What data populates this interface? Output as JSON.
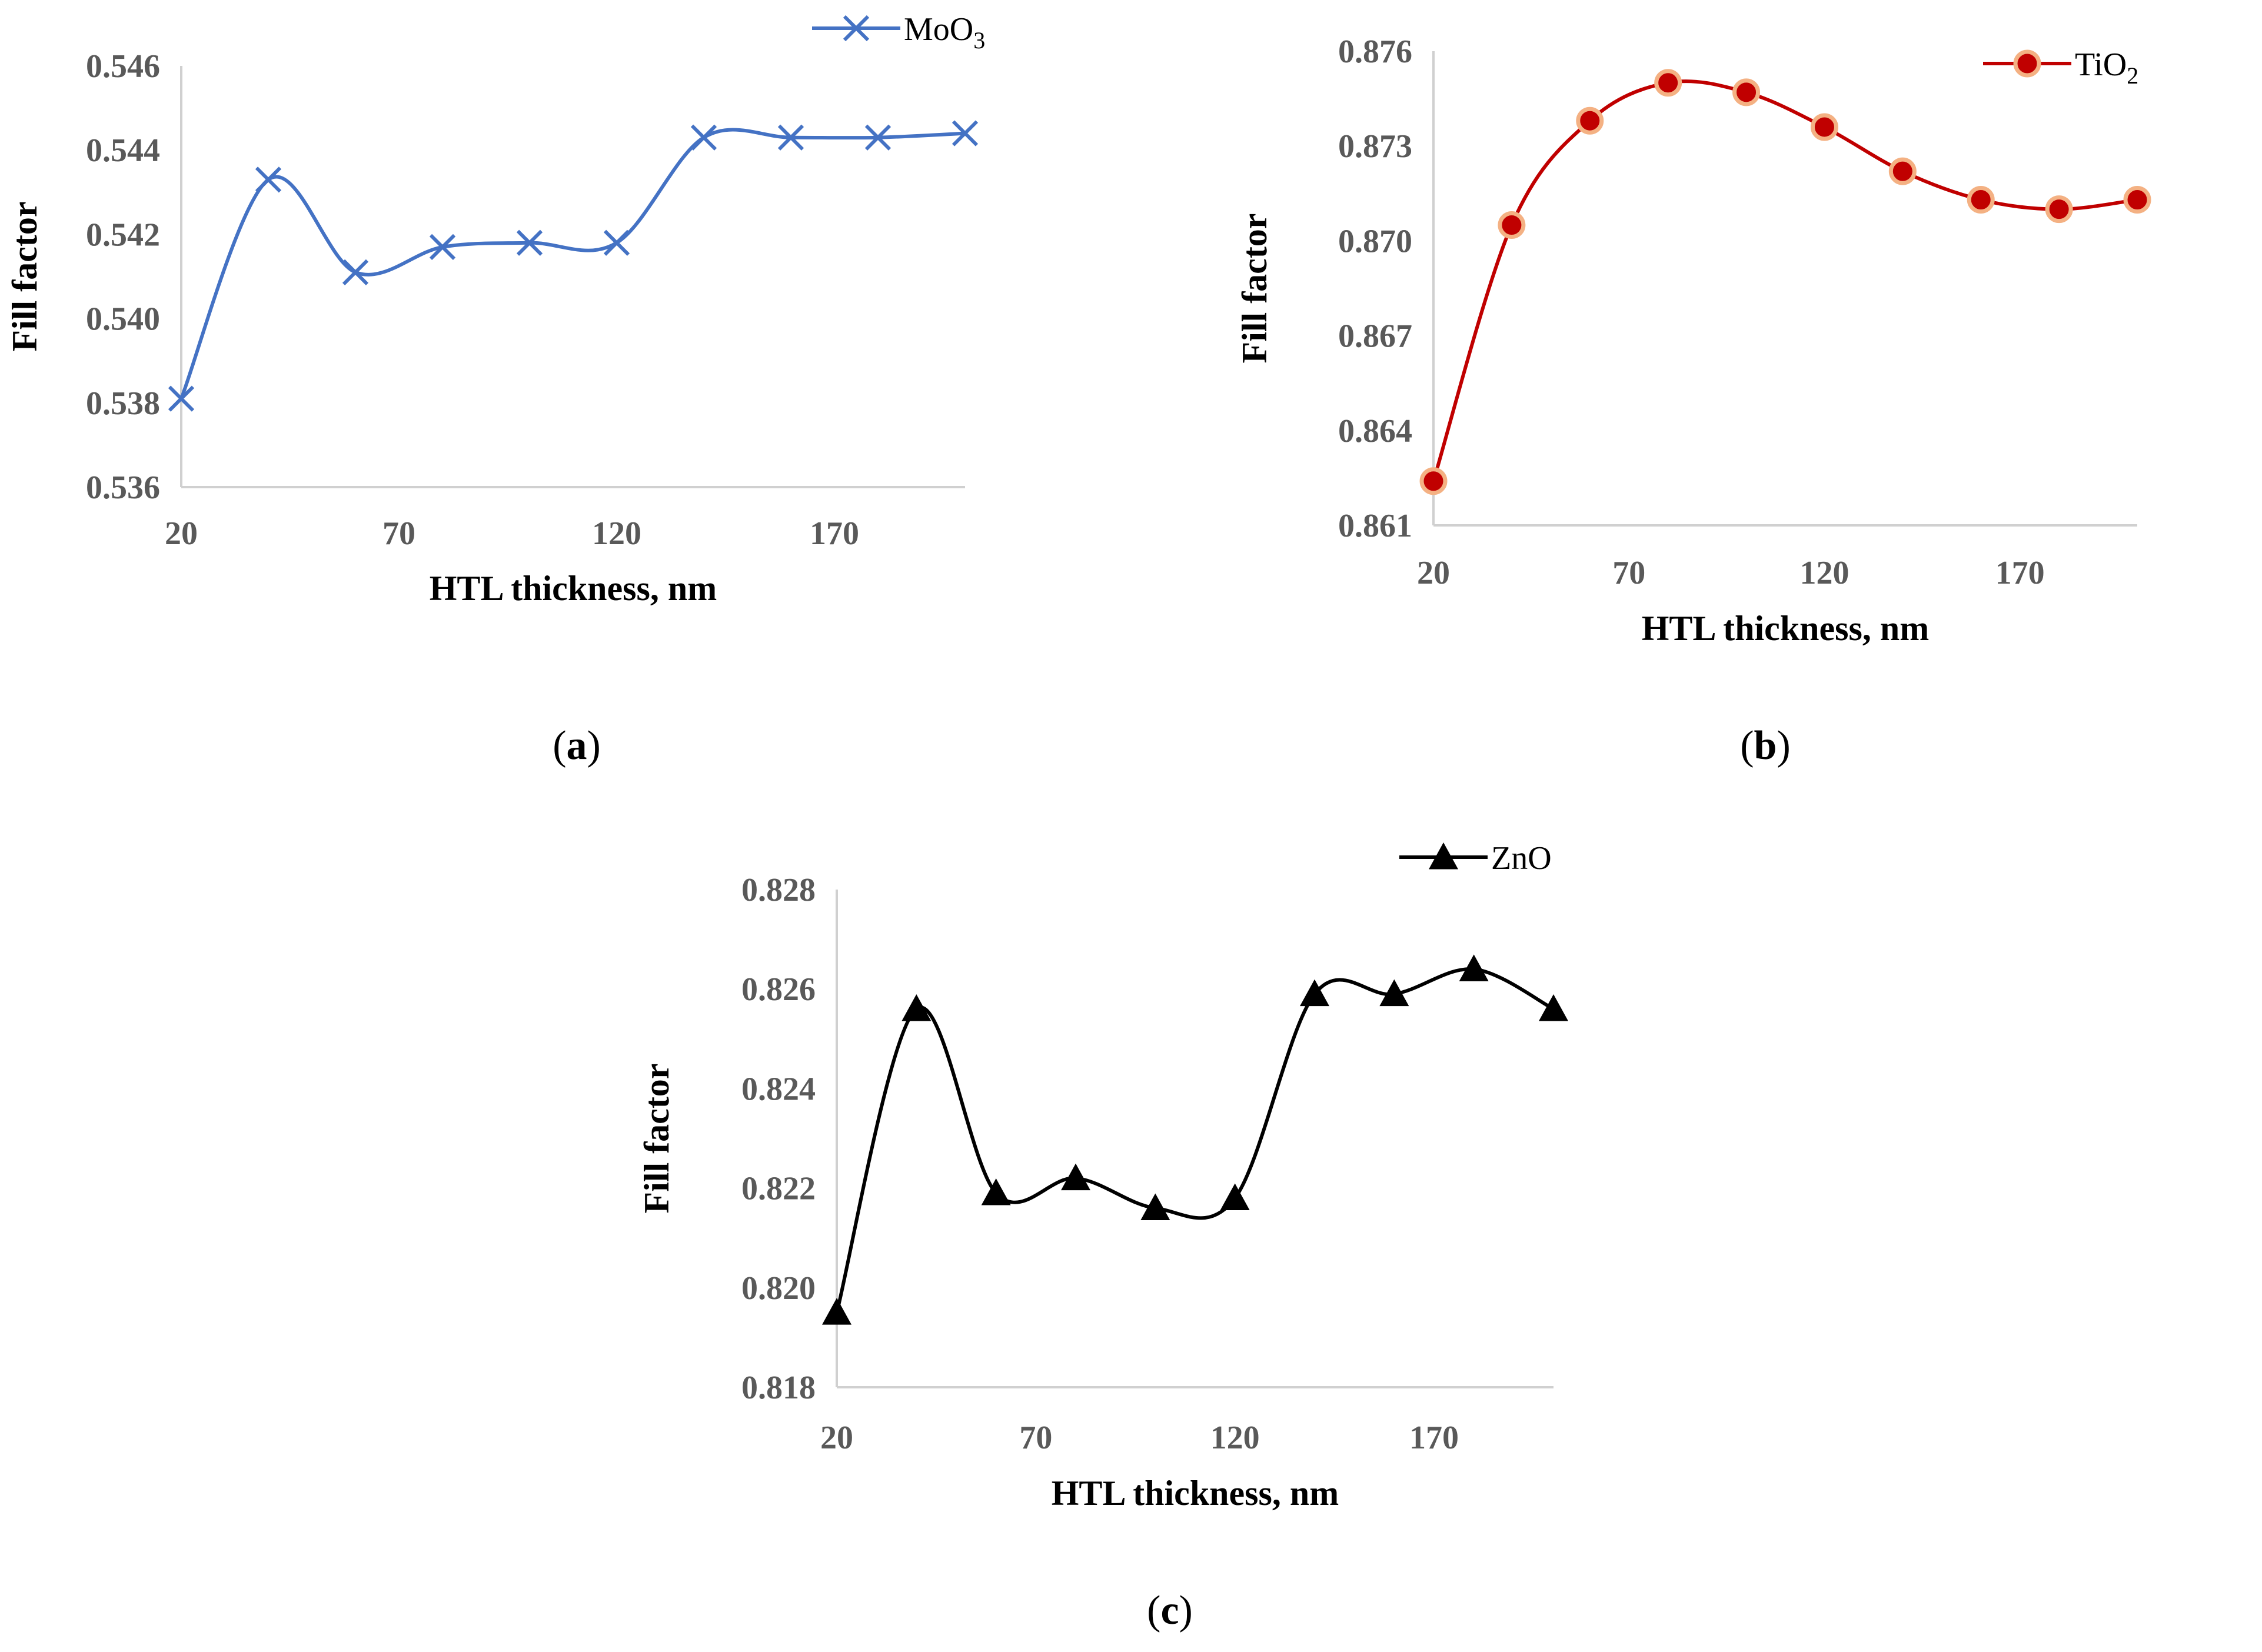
{
  "chart_data": [
    {
      "id": "a",
      "type": "line",
      "panel_label": "a",
      "xlabel": "HTL thickness, nm",
      "ylabel": "Fill factor",
      "x": [
        20,
        40,
        60,
        80,
        100,
        120,
        140,
        160,
        180,
        200
      ],
      "xlim": [
        20,
        200
      ],
      "xticks": [
        20,
        70,
        120,
        170
      ],
      "ylim": [
        0.536,
        0.546
      ],
      "yticks": [
        "0.536",
        "0.538",
        "0.540",
        "0.542",
        "0.544",
        "0.546"
      ],
      "smooth": true,
      "legend_position": "top-right",
      "series": [
        {
          "name_main": "MoO",
          "name_sub": "3",
          "marker": "x",
          "color": "#4472C4",
          "values": [
            0.5381,
            0.5433,
            0.5411,
            0.5417,
            0.5418,
            0.5418,
            0.5443,
            0.5443,
            0.5443,
            0.5444
          ]
        }
      ]
    },
    {
      "id": "b",
      "type": "line",
      "panel_label": "b",
      "xlabel": "HTL thickness, nm",
      "ylabel": "Fill factor",
      "x": [
        20,
        40,
        60,
        80,
        100,
        120,
        140,
        160,
        180,
        200
      ],
      "xlim": [
        20,
        200
      ],
      "xticks": [
        20,
        70,
        120,
        170
      ],
      "ylim": [
        0.861,
        0.876
      ],
      "yticks": [
        "0.861",
        "0.864",
        "0.867",
        "0.870",
        "0.873",
        "0.876"
      ],
      "smooth": true,
      "legend_position": "top-right",
      "series": [
        {
          "name_main": "TiO",
          "name_sub": "2",
          "marker": "circle",
          "color": "#C00000",
          "marker_edge": "#F4B183",
          "values": [
            0.8624,
            0.8705,
            0.8738,
            0.875,
            0.8747,
            0.8736,
            0.8722,
            0.8713,
            0.871,
            0.8713
          ]
        }
      ]
    },
    {
      "id": "c",
      "type": "line",
      "panel_label": "c",
      "xlabel": "HTL thickness, nm",
      "ylabel": "Fill factor",
      "x": [
        20,
        40,
        60,
        80,
        100,
        120,
        140,
        160,
        180,
        200
      ],
      "xlim": [
        20,
        200
      ],
      "xticks": [
        20,
        70,
        120,
        170
      ],
      "ylim": [
        0.818,
        0.828
      ],
      "yticks": [
        "0.818",
        "0.820",
        "0.822",
        "0.824",
        "0.826",
        "0.828"
      ],
      "smooth": true,
      "legend_position": "top-right",
      "series": [
        {
          "name_main": "ZnO",
          "name_sub": "",
          "marker": "triangle",
          "color": "#000000",
          "values": [
            0.8195,
            0.8256,
            0.8219,
            0.8222,
            0.8216,
            0.8218,
            0.8259,
            0.8259,
            0.8264,
            0.8256
          ]
        }
      ]
    }
  ]
}
